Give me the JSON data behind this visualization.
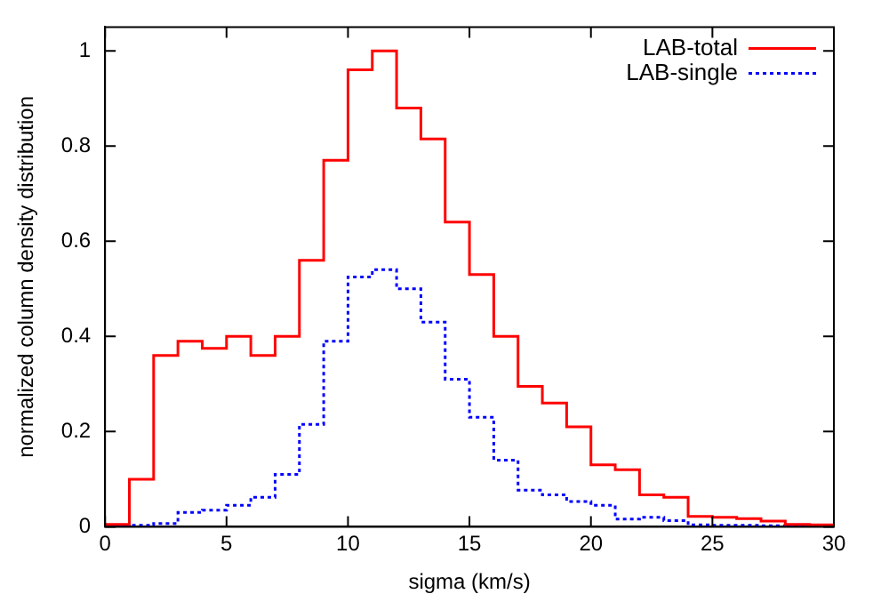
{
  "chart_data": {
    "type": "histogram",
    "xlabel": "sigma (km/s)",
    "ylabel": "normalized column density distribution",
    "bins": [
      0,
      1,
      2,
      3,
      4,
      5,
      6,
      7,
      8,
      9,
      10,
      11,
      12,
      13,
      14,
      15,
      16,
      17,
      18,
      19,
      20,
      21,
      22,
      23,
      24,
      25,
      26,
      27,
      28,
      29,
      30
    ],
    "series": [
      {
        "name": "LAB-total",
        "color": "#ff0000",
        "line_style": "solid",
        "values": [
          0.005,
          0.1,
          0.36,
          0.39,
          0.375,
          0.4,
          0.36,
          0.4,
          0.56,
          0.77,
          0.96,
          1.0,
          0.88,
          0.815,
          0.64,
          0.53,
          0.4,
          0.295,
          0.26,
          0.21,
          0.13,
          0.12,
          0.067,
          0.062,
          0.022,
          0.02,
          0.017,
          0.012,
          0.005,
          0.004
        ]
      },
      {
        "name": "LAB-single",
        "color": "#0000ff",
        "line_style": "dotted",
        "values": [
          0,
          0.003,
          0.007,
          0.03,
          0.035,
          0.045,
          0.062,
          0.11,
          0.215,
          0.39,
          0.525,
          0.54,
          0.5,
          0.43,
          0.31,
          0.23,
          0.14,
          0.077,
          0.067,
          0.053,
          0.045,
          0.016,
          0.02,
          0.013,
          0.004,
          0.003,
          0.003,
          0.002,
          0.002,
          0.001
        ]
      }
    ],
    "xlim": [
      0,
      30
    ],
    "xticks": [
      0,
      5,
      10,
      15,
      20,
      25,
      30
    ],
    "ylim": [
      0,
      1.05
    ],
    "yticks": [
      0,
      0.2,
      0.4,
      0.6,
      0.8,
      1
    ],
    "grid": false,
    "legend": "top right"
  }
}
